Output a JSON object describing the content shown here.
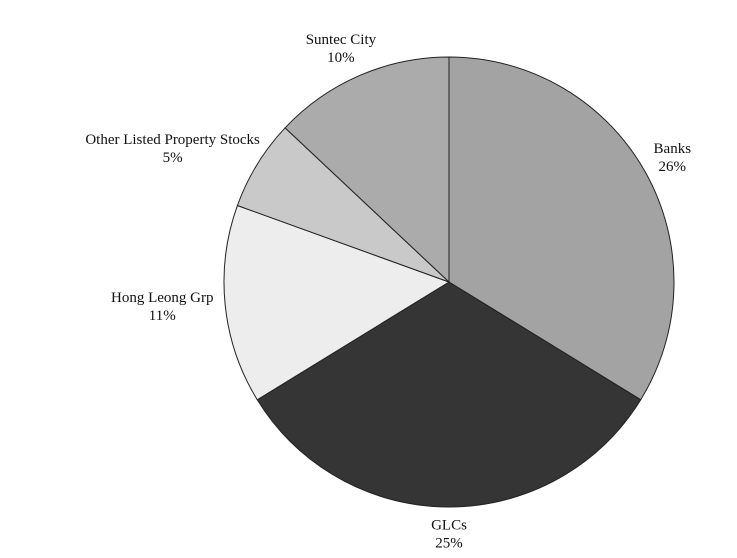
{
  "chart_data": {
    "type": "pie",
    "categories": [
      "Banks",
      "GLCs",
      "Hong Leong Grp",
      "Other Listed Property Stocks",
      "Suntec City"
    ],
    "values": [
      26,
      25,
      11,
      5,
      10
    ],
    "value_labels": [
      "26%",
      "25%",
      "11%",
      "5%",
      "10%"
    ],
    "colors": [
      "#a3a3a3",
      "#353535",
      "#ededed",
      "#c9c9c9",
      "#ababab"
    ]
  }
}
